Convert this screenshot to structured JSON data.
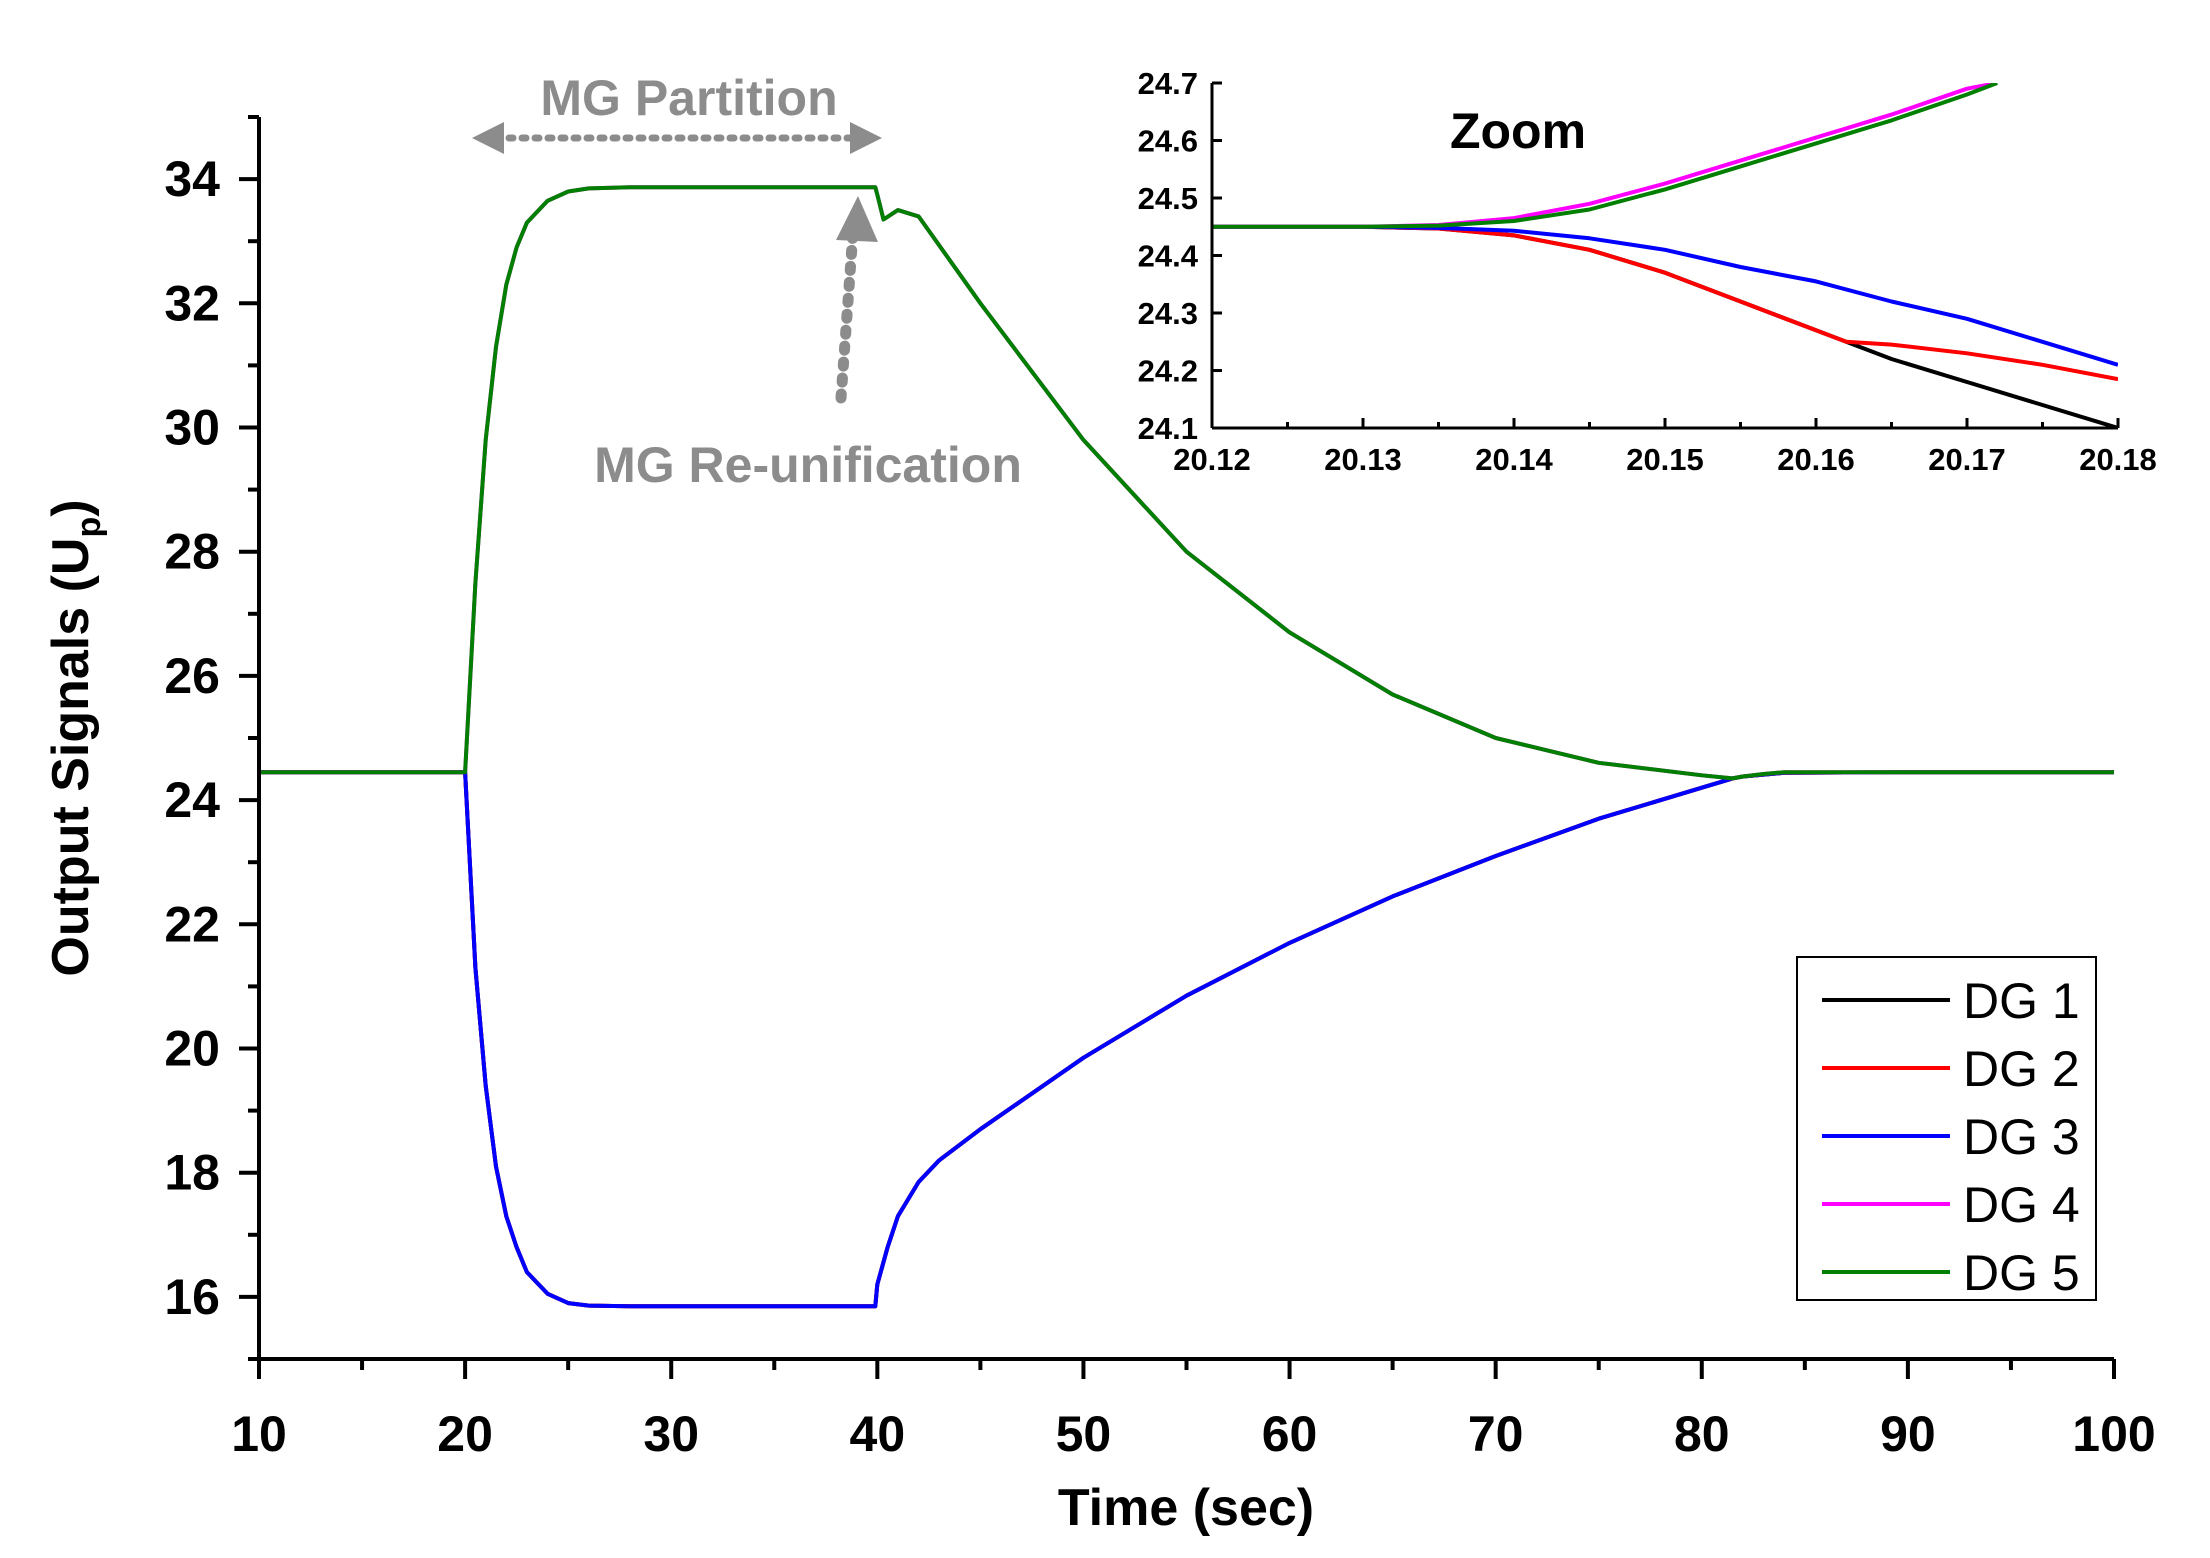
{
  "chart_data": [
    {
      "id": "main",
      "type": "line",
      "title": "",
      "xlabel": "Time (sec)",
      "ylabel_main": "Output Signals (U",
      "ylabel_sub": "p",
      "ylabel_close": ")",
      "xlim": [
        10,
        100
      ],
      "ylim": [
        15,
        35
      ],
      "xticks": [
        10,
        20,
        30,
        40,
        50,
        60,
        70,
        80,
        90,
        100
      ],
      "yticks": [
        16,
        18,
        20,
        22,
        24,
        26,
        28,
        30,
        32,
        34
      ],
      "xtick_labels": [
        "10",
        "20",
        "30",
        "40",
        "50",
        "60",
        "70",
        "80",
        "90",
        "100"
      ],
      "ytick_labels": [
        "16",
        "18",
        "20",
        "22",
        "24",
        "26",
        "28",
        "30",
        "32",
        "34"
      ],
      "legend_position": "bottom-right",
      "series": [
        {
          "name": "DG 1",
          "color": "#000000",
          "x": [
            10,
            20,
            20.5,
            21,
            21.5,
            22,
            22.5,
            23,
            24,
            25,
            26,
            28,
            30,
            35,
            39.9,
            40,
            40.5,
            41,
            42,
            43,
            45,
            50,
            55,
            60,
            65,
            70,
            75,
            80,
            81.5,
            82,
            84,
            90,
            100
          ],
          "y": [
            24.45,
            24.45,
            21.3,
            19.4,
            18.1,
            17.3,
            16.8,
            16.4,
            16.05,
            15.9,
            15.86,
            15.85,
            15.85,
            15.85,
            15.85,
            16.2,
            16.8,
            17.3,
            17.85,
            18.2,
            18.7,
            19.85,
            20.85,
            21.7,
            22.45,
            23.1,
            23.7,
            24.2,
            24.35,
            24.38,
            24.44,
            24.45,
            24.45
          ]
        },
        {
          "name": "DG 2",
          "color": "#ff0000",
          "x": [
            10,
            20,
            20.5,
            21,
            21.5,
            22,
            22.5,
            23,
            24,
            25,
            26,
            28,
            30,
            35,
            39.9,
            40,
            40.5,
            41,
            42,
            43,
            45,
            50,
            55,
            60,
            65,
            70,
            75,
            80,
            81.5,
            82,
            84,
            90,
            100
          ],
          "y": [
            24.45,
            24.45,
            21.3,
            19.4,
            18.1,
            17.3,
            16.8,
            16.4,
            16.05,
            15.9,
            15.86,
            15.85,
            15.85,
            15.85,
            15.85,
            16.2,
            16.8,
            17.3,
            17.85,
            18.2,
            18.7,
            19.85,
            20.85,
            21.7,
            22.45,
            23.1,
            23.7,
            24.2,
            24.35,
            24.38,
            24.44,
            24.45,
            24.45
          ]
        },
        {
          "name": "DG 3",
          "color": "#0000ff",
          "x": [
            10,
            20,
            20.5,
            21,
            21.5,
            22,
            22.5,
            23,
            24,
            25,
            26,
            28,
            30,
            35,
            39.9,
            40,
            40.5,
            41,
            42,
            43,
            45,
            50,
            55,
            60,
            65,
            70,
            75,
            80,
            81.5,
            82,
            84,
            90,
            100
          ],
          "y": [
            24.45,
            24.45,
            21.3,
            19.4,
            18.1,
            17.3,
            16.8,
            16.4,
            16.05,
            15.9,
            15.86,
            15.85,
            15.85,
            15.85,
            15.85,
            16.2,
            16.8,
            17.3,
            17.85,
            18.2,
            18.7,
            19.85,
            20.85,
            21.7,
            22.45,
            23.1,
            23.7,
            24.2,
            24.35,
            24.38,
            24.44,
            24.45,
            24.45
          ]
        },
        {
          "name": "DG 4",
          "color": "#ff00ff",
          "x": [
            10,
            20,
            20.5,
            21,
            21.5,
            22,
            22.5,
            23,
            24,
            25,
            26,
            28,
            30,
            35,
            39.9,
            40,
            40.3,
            41,
            42,
            45,
            50,
            55,
            60,
            65,
            70,
            75,
            80,
            81.5,
            82,
            83,
            84,
            90,
            100
          ],
          "y": [
            24.45,
            24.45,
            27.5,
            29.8,
            31.3,
            32.3,
            32.9,
            33.3,
            33.65,
            33.8,
            33.85,
            33.87,
            33.87,
            33.87,
            33.87,
            33.75,
            33.35,
            33.5,
            33.4,
            32.0,
            29.8,
            28.0,
            26.7,
            25.7,
            25.0,
            24.6,
            24.4,
            24.35,
            24.38,
            24.42,
            24.45,
            24.45,
            24.45
          ]
        },
        {
          "name": "DG 5",
          "color": "#007f00",
          "x": [
            10,
            20,
            20.5,
            21,
            21.5,
            22,
            22.5,
            23,
            24,
            25,
            26,
            28,
            30,
            35,
            39.9,
            40,
            40.3,
            41,
            42,
            45,
            50,
            55,
            60,
            65,
            70,
            75,
            80,
            81.5,
            82,
            83,
            84,
            90,
            100
          ],
          "y": [
            24.45,
            24.45,
            27.5,
            29.8,
            31.3,
            32.3,
            32.9,
            33.3,
            33.65,
            33.8,
            33.85,
            33.87,
            33.87,
            33.87,
            33.87,
            33.75,
            33.35,
            33.5,
            33.4,
            32.0,
            29.8,
            28.0,
            26.7,
            25.7,
            25.0,
            24.6,
            24.4,
            24.35,
            24.38,
            24.42,
            24.45,
            24.45,
            24.45
          ]
        }
      ]
    },
    {
      "id": "zoom",
      "type": "line",
      "title": "Zoom",
      "xlabel": "",
      "ylabel": "",
      "xlim": [
        20.12,
        20.18
      ],
      "ylim": [
        24.1,
        24.7
      ],
      "xticks": [
        20.12,
        20.13,
        20.14,
        20.15,
        20.16,
        20.17,
        20.18
      ],
      "yticks": [
        24.1,
        24.2,
        24.3,
        24.4,
        24.5,
        24.6,
        24.7
      ],
      "xtick_labels": [
        "20.12",
        "20.13",
        "20.14",
        "20.15",
        "20.16",
        "20.17",
        "20.18"
      ],
      "ytick_labels": [
        "24.1",
        "24.2",
        "24.3",
        "24.4",
        "24.5",
        "24.6",
        "24.7"
      ],
      "series": [
        {
          "name": "DG 1",
          "color": "#000000",
          "x": [
            20.12,
            20.13,
            20.135,
            20.14,
            20.145,
            20.15,
            20.155,
            20.16,
            20.162,
            20.165,
            20.17,
            20.175,
            20.18
          ],
          "y": [
            24.45,
            24.45,
            24.447,
            24.435,
            24.41,
            24.37,
            24.32,
            24.27,
            24.25,
            24.22,
            24.18,
            24.14,
            24.1
          ]
        },
        {
          "name": "DG 2",
          "color": "#ff0000",
          "x": [
            20.12,
            20.13,
            20.135,
            20.14,
            20.145,
            20.15,
            20.155,
            20.16,
            20.162,
            20.165,
            20.17,
            20.175,
            20.18
          ],
          "y": [
            24.45,
            24.45,
            24.447,
            24.435,
            24.41,
            24.37,
            24.32,
            24.27,
            24.25,
            24.245,
            24.23,
            24.21,
            24.185
          ]
        },
        {
          "name": "DG 3",
          "color": "#0000ff",
          "x": [
            20.12,
            20.13,
            20.135,
            20.14,
            20.145,
            20.15,
            20.155,
            20.16,
            20.165,
            20.17,
            20.175,
            20.18
          ],
          "y": [
            24.45,
            24.45,
            24.448,
            24.443,
            24.43,
            24.41,
            24.38,
            24.355,
            24.32,
            24.29,
            24.25,
            24.21
          ]
        },
        {
          "name": "DG 4",
          "color": "#ff00ff",
          "x": [
            20.12,
            20.13,
            20.135,
            20.14,
            20.145,
            20.15,
            20.155,
            20.16,
            20.165,
            20.17,
            20.172
          ],
          "y": [
            24.45,
            24.45,
            24.453,
            24.465,
            24.49,
            24.525,
            24.565,
            24.605,
            24.645,
            24.69,
            24.7
          ]
        },
        {
          "name": "DG 5",
          "color": "#007f00",
          "x": [
            20.12,
            20.13,
            20.135,
            20.14,
            20.145,
            20.15,
            20.155,
            20.16,
            20.165,
            20.17,
            20.172
          ],
          "y": [
            24.45,
            24.45,
            24.452,
            24.46,
            24.48,
            24.515,
            24.555,
            24.595,
            24.635,
            24.68,
            24.7
          ]
        }
      ]
    }
  ],
  "annotations": {
    "partition_label": "MG Partition",
    "reunification_label": "MG Re-unification",
    "arrow_color": "#8c8c8c"
  },
  "legend": {
    "items": [
      "DG 1",
      "DG 2",
      "DG 3",
      "DG 4",
      "DG 5"
    ],
    "colors": [
      "#000000",
      "#ff0000",
      "#0000ff",
      "#ff00ff",
      "#007f00"
    ]
  }
}
